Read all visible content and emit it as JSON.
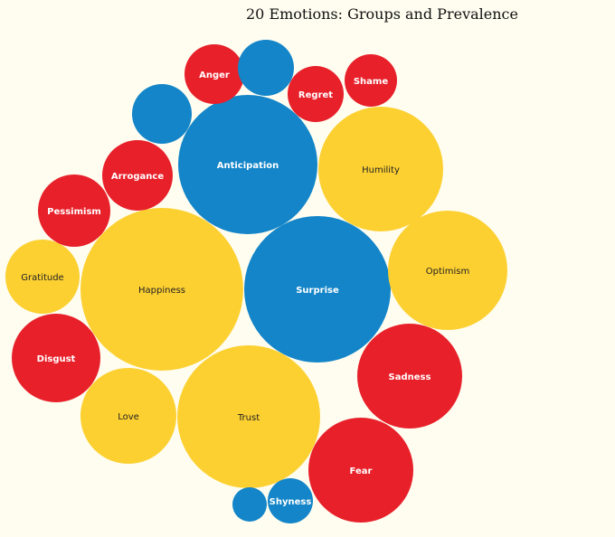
{
  "chart_data": {
    "type": "bubble",
    "title": "20 Emotions: Groups and Prevalence",
    "legend": "none",
    "colors": {
      "red": "#e8202a",
      "blue": "#1385c8",
      "yellow": "#fdd031"
    },
    "text_colors": {
      "red": "#ffffff",
      "blue": "#ffffff",
      "yellow": "#222222"
    },
    "bubbles": [
      {
        "label": "Happiness",
        "group": "yellow",
        "value": 90
      },
      {
        "label": "Surprise",
        "group": "blue",
        "value": 81
      },
      {
        "label": "Trust",
        "group": "yellow",
        "value": 79
      },
      {
        "label": "Anticipation",
        "group": "blue",
        "value": 77
      },
      {
        "label": "Humility",
        "group": "yellow",
        "value": 69
      },
      {
        "label": "Optimism",
        "group": "yellow",
        "value": 66
      },
      {
        "label": "Sadness",
        "group": "red",
        "value": 58
      },
      {
        "label": "Fear",
        "group": "red",
        "value": 58
      },
      {
        "label": "Love",
        "group": "yellow",
        "value": 53
      },
      {
        "label": "Disgust",
        "group": "red",
        "value": 49
      },
      {
        "label": "Gratitude",
        "group": "yellow",
        "value": 41
      },
      {
        "label": "Pessimism",
        "group": "red",
        "value": 40
      },
      {
        "label": "Arrogance",
        "group": "red",
        "value": 39
      },
      {
        "label": "",
        "group": "blue",
        "value": 33
      },
      {
        "label": "Anger",
        "group": "red",
        "value": 33
      },
      {
        "label": "",
        "group": "blue",
        "value": 31
      },
      {
        "label": "Regret",
        "group": "red",
        "value": 31
      },
      {
        "label": "Shame",
        "group": "red",
        "value": 29
      },
      {
        "label": "Shyness",
        "group": "blue",
        "value": 25
      },
      {
        "label": "",
        "group": "blue",
        "value": 19
      }
    ]
  }
}
